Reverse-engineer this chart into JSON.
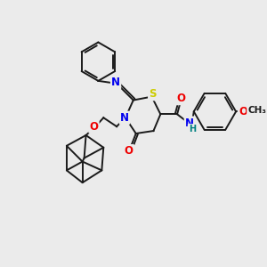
{
  "bg_color": "#ebebeb",
  "bond_color": "#1a1a1a",
  "atom_colors": {
    "S": "#cccc00",
    "N": "#0000ee",
    "O": "#ee0000",
    "H": "#008080",
    "C": "#1a1a1a"
  },
  "figsize": [
    3.0,
    3.0
  ],
  "dpi": 100,
  "lw": 1.4,
  "ring_r": 18,
  "font_size": 8.5
}
